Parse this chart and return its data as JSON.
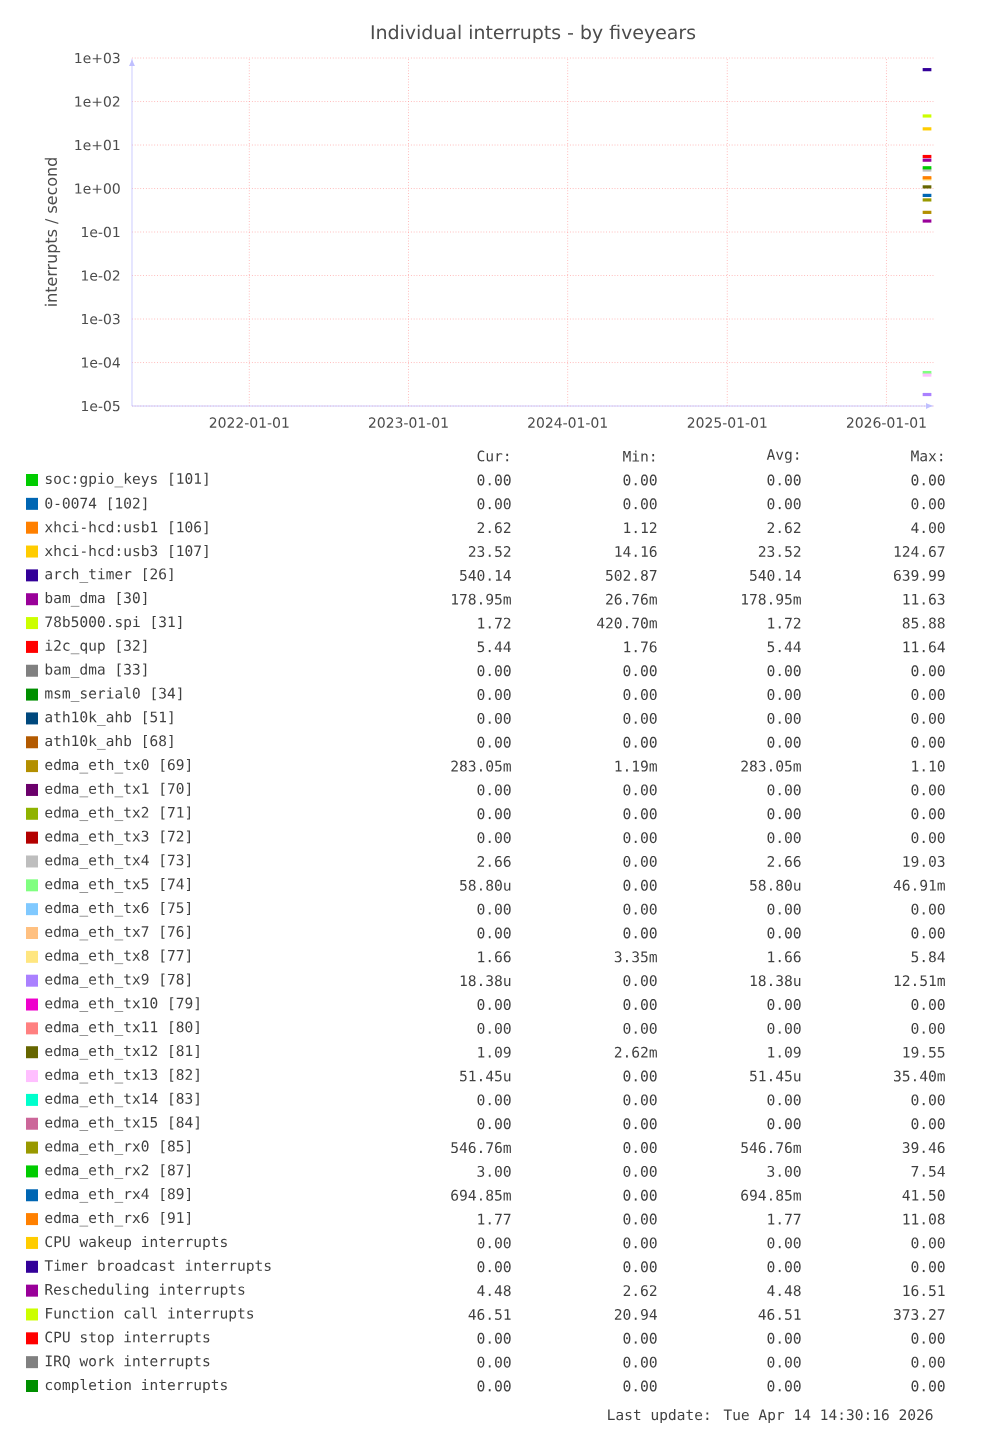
{
  "chart_data": {
    "type": "line",
    "title": "Individual interrupts - by fiveyears",
    "ylabel": "interrupts / second",
    "x": [
      "2026-03-25",
      "2026-04-14"
    ],
    "xlim": [
      "2021-04-07",
      "2026-04-20"
    ],
    "xticks": [
      {
        "value": "2022-01-01",
        "label": "2022-01-01"
      },
      {
        "value": "2023-01-01",
        "label": "2023-01-01"
      },
      {
        "value": "2024-01-01",
        "label": "2024-01-01"
      },
      {
        "value": "2025-01-01",
        "label": "2025-01-01"
      },
      {
        "value": "2026-01-01",
        "label": "2026-01-01"
      }
    ],
    "ylim": [
      1e-05,
      1000
    ],
    "log": true,
    "yticks": [
      {
        "value": 1e-05,
        "label": "1e-05"
      },
      {
        "value": 0.0001,
        "label": "1e-04"
      },
      {
        "value": 0.001,
        "label": "1e-03"
      },
      {
        "value": 0.01,
        "label": "1e-02"
      },
      {
        "value": 0.1,
        "label": "1e-01"
      },
      {
        "value": 1,
        "label": "1e+00"
      },
      {
        "value": 10,
        "label": "1e+01"
      },
      {
        "value": 100,
        "label": "1e+02"
      },
      {
        "value": 1000,
        "label": "1e+03"
      }
    ],
    "grid": true,
    "legend": "bottom",
    "marker": "none",
    "line_style": "solid",
    "series": [
      {
        "name": "soc:gpio_keys [101]",
        "color": "#00cc00",
        "values": [
          null,
          null
        ]
      },
      {
        "name": "0-0074 [102]",
        "color": "#0066b3",
        "values": [
          null,
          null
        ]
      },
      {
        "name": "xhci-hcd:usb1 [106]",
        "color": "#ff8000",
        "values": [
          null,
          null
        ]
      },
      {
        "name": "xhci-hcd:usb3 [107]",
        "color": "#ffcc00",
        "values": [
          23.52,
          23.52
        ]
      },
      {
        "name": "arch_timer [26]",
        "color": "#330099",
        "values": [
          540.14,
          540.14
        ]
      },
      {
        "name": "bam_dma [30]",
        "color": "#990099",
        "values": [
          0.17895,
          0.17895
        ]
      },
      {
        "name": "78b5000.spi [31]",
        "color": "#ccff00",
        "values": [
          null,
          null
        ]
      },
      {
        "name": "i2c_qup [32]",
        "color": "#ff0000",
        "values": [
          5.44,
          5.44
        ]
      },
      {
        "name": "bam_dma [33]",
        "color": "#808080",
        "values": [
          null,
          null
        ]
      },
      {
        "name": "msm_serial0 [34]",
        "color": "#008f00",
        "values": [
          null,
          null
        ]
      },
      {
        "name": "ath10k_ahb [51]",
        "color": "#00487d",
        "values": [
          null,
          null
        ]
      },
      {
        "name": "ath10k_ahb [68]",
        "color": "#b35a00",
        "values": [
          null,
          null
        ]
      },
      {
        "name": "edma_eth_tx0 [69]",
        "color": "#b38f00",
        "values": [
          0.28305,
          0.28305
        ]
      },
      {
        "name": "edma_eth_tx1 [70]",
        "color": "#6b006b",
        "values": [
          null,
          null
        ]
      },
      {
        "name": "edma_eth_tx2 [71]",
        "color": "#8fb300",
        "values": [
          null,
          null
        ]
      },
      {
        "name": "edma_eth_tx3 [72]",
        "color": "#b30000",
        "values": [
          null,
          null
        ]
      },
      {
        "name": "edma_eth_tx4 [73]",
        "color": "#bebebe",
        "values": [
          2.66,
          2.66
        ]
      },
      {
        "name": "edma_eth_tx5 [74]",
        "color": "#80ff80",
        "values": [
          5.88e-05,
          5.88e-05
        ]
      },
      {
        "name": "edma_eth_tx6 [75]",
        "color": "#80c9ff",
        "values": [
          null,
          null
        ]
      },
      {
        "name": "edma_eth_tx7 [76]",
        "color": "#ffc080",
        "values": [
          null,
          null
        ]
      },
      {
        "name": "edma_eth_tx8 [77]",
        "color": "#ffe680",
        "values": [
          1.66,
          1.66
        ]
      },
      {
        "name": "edma_eth_tx9 [78]",
        "color": "#aa80ff",
        "values": [
          1.838e-05,
          1.838e-05
        ]
      },
      {
        "name": "edma_eth_tx10 [79]",
        "color": "#ee00cc",
        "values": [
          null,
          null
        ]
      },
      {
        "name": "edma_eth_tx11 [80]",
        "color": "#ff8080",
        "values": [
          null,
          null
        ]
      },
      {
        "name": "edma_eth_tx12 [81]",
        "color": "#666600",
        "values": [
          1.09,
          1.09
        ]
      },
      {
        "name": "edma_eth_tx13 [82]",
        "color": "#ffbfff",
        "values": [
          5.145e-05,
          5.145e-05
        ]
      },
      {
        "name": "edma_eth_tx14 [83]",
        "color": "#00ffcc",
        "values": [
          null,
          null
        ]
      },
      {
        "name": "edma_eth_tx15 [84]",
        "color": "#cc6699",
        "values": [
          null,
          null
        ]
      },
      {
        "name": "edma_eth_rx0 [85]",
        "color": "#999900",
        "values": [
          0.54676,
          0.54676
        ]
      },
      {
        "name": "edma_eth_rx2 [87]",
        "color": "#00cc00",
        "values": [
          3.0,
          3.0
        ]
      },
      {
        "name": "edma_eth_rx4 [89]",
        "color": "#0066b3",
        "values": [
          0.69485,
          0.69485
        ]
      },
      {
        "name": "edma_eth_rx6 [91]",
        "color": "#ff8000",
        "values": [
          1.77,
          1.77
        ]
      },
      {
        "name": "CPU wakeup interrupts",
        "color": "#ffcc00",
        "values": [
          null,
          null
        ]
      },
      {
        "name": "Timer broadcast interrupts",
        "color": "#330099",
        "values": [
          null,
          null
        ]
      },
      {
        "name": "Rescheduling interrupts",
        "color": "#990099",
        "values": [
          4.48,
          4.48
        ]
      },
      {
        "name": "Function call interrupts",
        "color": "#ccff00",
        "values": [
          46.51,
          46.51
        ]
      },
      {
        "name": "CPU stop interrupts",
        "color": "#ff0000",
        "values": [
          null,
          null
        ]
      },
      {
        "name": "IRQ work interrupts",
        "color": "#808080",
        "values": [
          null,
          null
        ]
      },
      {
        "name": "completion interrupts",
        "color": "#008f00",
        "values": [
          null,
          null
        ]
      }
    ],
    "annotations": [
      "Cur:",
      "Min:",
      "Avg:",
      "Max:",
      "0.00",
      "0.00",
      "0.00",
      "0.00",
      "0.00",
      "0.00",
      "0.00",
      "0.00",
      "2.62",
      "1.12",
      "2.62",
      "4.00",
      "23.52",
      "14.16",
      "23.52",
      "124.67",
      "540.14",
      "502.87",
      "540.14",
      "639.99",
      "178.95m",
      "26.76m",
      "178.95m",
      "11.63",
      "1.72",
      "420.70m",
      "1.72",
      "85.88",
      "5.44",
      "1.76",
      "5.44",
      "11.64",
      "0.00",
      "0.00",
      "0.00",
      "0.00",
      "0.00",
      "0.00",
      "0.00",
      "0.00",
      "0.00",
      "0.00",
      "0.00",
      "0.00",
      "0.00",
      "0.00",
      "0.00",
      "0.00",
      "283.05m",
      "1.19m",
      "283.05m",
      "1.10",
      "0.00",
      "0.00",
      "0.00",
      "0.00",
      "0.00",
      "0.00",
      "0.00",
      "0.00",
      "0.00",
      "0.00",
      "0.00",
      "0.00",
      "2.66",
      "0.00",
      "2.66",
      "19.03",
      "58.80u",
      "0.00",
      "58.80u",
      "46.91m",
      "0.00",
      "0.00",
      "0.00",
      "0.00",
      "0.00",
      "0.00",
      "0.00",
      "0.00",
      "1.66",
      "3.35m",
      "1.66",
      "5.84",
      "18.38u",
      "0.00",
      "18.38u",
      "12.51m",
      "0.00",
      "0.00",
      "0.00",
      "0.00",
      "0.00",
      "0.00",
      "0.00",
      "0.00",
      "1.09",
      "2.62m",
      "1.09",
      "19.55",
      "51.45u",
      "0.00",
      "51.45u",
      "35.40m",
      "0.00",
      "0.00",
      "0.00",
      "0.00",
      "0.00",
      "0.00",
      "0.00",
      "0.00",
      "546.76m",
      "0.00",
      "546.76m",
      "39.46",
      "3.00",
      "0.00",
      "3.00",
      "7.54",
      "694.85m",
      "0.00",
      "694.85m",
      "41.50",
      "1.77",
      "0.00",
      "1.77",
      "11.08",
      "0.00",
      "0.00",
      "0.00",
      "0.00",
      "0.00",
      "0.00",
      "0.00",
      "0.00",
      "4.48",
      "2.62",
      "4.48",
      "16.51",
      "46.51",
      "20.94",
      "46.51",
      "373.27",
      "0.00",
      "0.00",
      "0.00",
      "0.00",
      "0.00",
      "0.00",
      "0.00",
      "0.00",
      "0.00",
      "0.00",
      "0.00",
      "0.00",
      "Last update: Tue Apr 14 14:30:16 2026"
    ]
  }
}
